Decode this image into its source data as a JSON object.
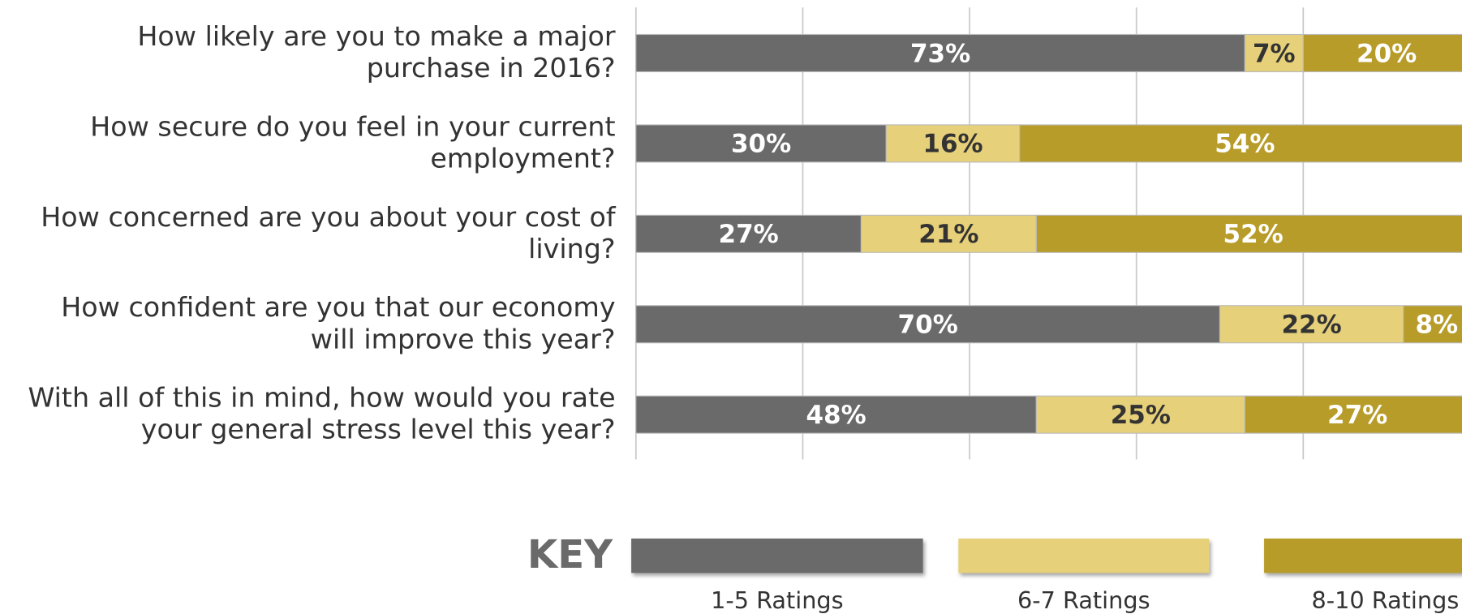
{
  "chart_data": {
    "type": "stacked-barh",
    "categories": [
      "How likely are you to make a major purchase in 2016?",
      "How secure do you feel in your current employment?",
      "How concerned are you about your cost of living?",
      "How confident are you that our economy will improve this year?",
      "With all of this in mind, how would you rate your general stress level this year?"
    ],
    "series": [
      {
        "name": "1-5 Ratings",
        "color": "#6a6a6a",
        "label_color": "#ffffff",
        "values": [
          73,
          30,
          27,
          70,
          48
        ],
        "value_labels": [
          "73%",
          "30%",
          "27%",
          "70%",
          "48%"
        ]
      },
      {
        "name": "6-7 Ratings",
        "color": "#e6d07a",
        "label_color": "#333333",
        "values": [
          7,
          16,
          21,
          22,
          25
        ],
        "value_labels": [
          "7%",
          "16%",
          "21%",
          "22%",
          "25%"
        ]
      },
      {
        "name": "8-10 Ratings",
        "color": "#b89c2a",
        "label_color": "#ffffff",
        "values": [
          20,
          54,
          52,
          8,
          27
        ],
        "value_labels": [
          "20%",
          "54%",
          "52%",
          "8%",
          "27%"
        ]
      }
    ],
    "xlim": [
      0,
      100
    ],
    "xticks": [
      0,
      20,
      40,
      60,
      80,
      100
    ],
    "grid": true,
    "legend_title": "KEY",
    "legend": "bottom"
  }
}
